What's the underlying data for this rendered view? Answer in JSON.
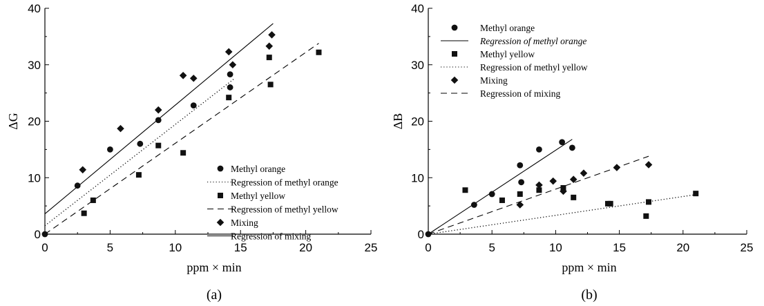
{
  "chart_data": [
    {
      "type": "scatter",
      "panel_label": "(a)",
      "xlabel": "ppm × min",
      "ylabel": "ΔG",
      "xlim": [
        0,
        25
      ],
      "ylim": [
        0,
        40
      ],
      "x_ticks": [
        0,
        5,
        10,
        15,
        20,
        25
      ],
      "y_ticks": [
        0,
        10,
        20,
        30,
        40
      ],
      "grid": false,
      "legend_position": "bottom-right",
      "series": [
        {
          "name": "Methyl orange",
          "marker": "circle",
          "x": [
            0,
            2.5,
            5,
            7.3,
            8.7,
            11.4,
            14.2,
            14.2
          ],
          "y": [
            0,
            8.6,
            15,
            16,
            20.2,
            22.8,
            28.3,
            26
          ]
        },
        {
          "name": "Methyl yellow",
          "marker": "square",
          "x": [
            3,
            3.7,
            7.2,
            8.7,
            10.6,
            14.1,
            17.2,
            17.3,
            21
          ],
          "y": [
            3.7,
            6,
            10.5,
            15.7,
            14.4,
            24.2,
            31.3,
            26.5,
            32.2
          ]
        },
        {
          "name": "Mixing",
          "marker": "diamond",
          "x": [
            2.9,
            5.8,
            8.7,
            10.6,
            11.4,
            14.1,
            14.4,
            17.2,
            17.4
          ],
          "y": [
            11.4,
            18.7,
            22,
            28.1,
            27.6,
            32.3,
            30,
            33.3,
            35.3
          ]
        }
      ],
      "regressions": [
        {
          "name": "Regression of methyl orange",
          "style": "dotted",
          "x": [
            0,
            14.5
          ],
          "y": [
            1.5,
            27.5
          ]
        },
        {
          "name": "Regression of methyl yellow",
          "style": "dashed",
          "x": [
            0,
            21
          ],
          "y": [
            0,
            33.8
          ]
        },
        {
          "name": "Regression of mixing",
          "style": "solid",
          "x": [
            0,
            17.5
          ],
          "y": [
            3.6,
            37.3
          ]
        }
      ]
    },
    {
      "type": "scatter",
      "panel_label": "(b)",
      "xlabel": "ppm × min",
      "ylabel": "ΔB",
      "xlim": [
        0,
        25
      ],
      "ylim": [
        0,
        40
      ],
      "x_ticks": [
        0,
        5,
        10,
        15,
        20,
        25
      ],
      "y_ticks": [
        0,
        10,
        20,
        30,
        40
      ],
      "grid": false,
      "legend_position": "top-left",
      "series": [
        {
          "name": "Methyl orange",
          "marker": "circle",
          "x": [
            0,
            3.6,
            5,
            7.2,
            7.3,
            8.7,
            10.5,
            11.3
          ],
          "y": [
            0,
            5.2,
            7.1,
            12.2,
            9.2,
            15,
            16.3,
            15.3
          ]
        },
        {
          "name": "Methyl yellow",
          "marker": "square",
          "x": [
            2.9,
            5.8,
            7.2,
            8.7,
            10.6,
            11.4,
            14.1,
            14.3,
            17.1,
            17.3,
            21
          ],
          "y": [
            7.8,
            6,
            7.1,
            7.8,
            8.2,
            6.5,
            5.4,
            5.4,
            3.2,
            5.7,
            7.2
          ]
        },
        {
          "name": "Mixing",
          "marker": "diamond",
          "x": [
            7.2,
            8.7,
            9.8,
            10.6,
            11.4,
            12.2,
            14.8,
            17.3
          ],
          "y": [
            5.2,
            8.7,
            9.4,
            7.6,
            9.7,
            10.8,
            11.8,
            12.3
          ]
        }
      ],
      "regressions": [
        {
          "name": "Regression of methyl orange",
          "style": "solid",
          "x": [
            0,
            11.3
          ],
          "y": [
            0,
            16.8
          ]
        },
        {
          "name": "Regression of methyl yellow",
          "style": "dotted",
          "x": [
            0,
            21
          ],
          "y": [
            0,
            7
          ]
        },
        {
          "name": "Regression of mixing",
          "style": "dashed",
          "x": [
            0,
            17.3
          ],
          "y": [
            0,
            13.8
          ]
        }
      ]
    }
  ]
}
